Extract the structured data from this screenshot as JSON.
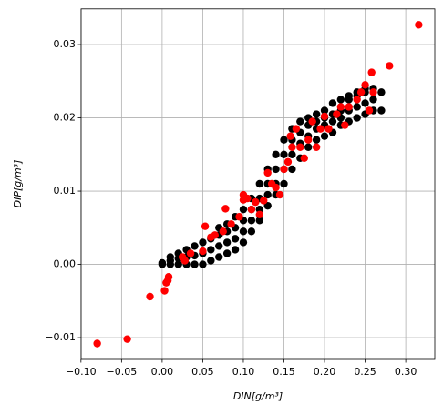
{
  "chart_data": {
    "type": "scatter",
    "xlabel": "DIN[g/m³]",
    "ylabel": "DIP[g/m³]",
    "xlim": [
      -0.0998,
      0.3358
    ],
    "ylim": [
      -0.012975,
      0.034875
    ],
    "xticks": [
      {
        "value": -0.1,
        "label": "−0.10"
      },
      {
        "value": -0.05,
        "label": "−0.05"
      },
      {
        "value": 0,
        "label": "0.00"
      },
      {
        "value": 0.05,
        "label": "0.05"
      },
      {
        "value": 0.1,
        "label": "0.10"
      },
      {
        "value": 0.15,
        "label": "0.15"
      },
      {
        "value": 0.2,
        "label": "0.20"
      },
      {
        "value": 0.25,
        "label": "0.25"
      },
      {
        "value": 0.3,
        "label": "0.30"
      }
    ],
    "yticks": [
      {
        "value": -0.01,
        "label": "−0.01"
      },
      {
        "value": 0,
        "label": "0.00"
      },
      {
        "value": 0.01,
        "label": "0.01"
      },
      {
        "value": 0.02,
        "label": "0.02"
      },
      {
        "value": 0.03,
        "label": "0.03"
      }
    ],
    "grid": true,
    "series": [
      {
        "color": "#000000",
        "x": [
          0,
          0,
          0.01,
          0.01,
          0.01,
          0.02,
          0.02,
          0.02,
          0.03,
          0.03,
          0.03,
          0.04,
          0.04,
          0.04,
          0.05,
          0.05,
          0.05,
          0.06,
          0.06,
          0.06,
          0.07,
          0.07,
          0.07,
          0.07,
          0.08,
          0.08,
          0.08,
          0.08,
          0.09,
          0.09,
          0.09,
          0.09,
          0.1,
          0.1,
          0.1,
          0.1,
          0.11,
          0.11,
          0.11,
          0.11,
          0.12,
          0.12,
          0.12,
          0.12,
          0.13,
          0.13,
          0.13,
          0.13,
          0.14,
          0.14,
          0.14,
          0.14,
          0.15,
          0.15,
          0.15,
          0.15,
          0.16,
          0.16,
          0.16,
          0.16,
          0.17,
          0.17,
          0.17,
          0.17,
          0.18,
          0.18,
          0.18,
          0.18,
          0.19,
          0.19,
          0.19,
          0.19,
          0.2,
          0.2,
          0.2,
          0.2,
          0.21,
          0.21,
          0.21,
          0.21,
          0.22,
          0.22,
          0.22,
          0.22,
          0.23,
          0.23,
          0.23,
          0.23,
          0.24,
          0.24,
          0.24,
          0.24,
          0.25,
          0.25,
          0.25,
          0.25,
          0.26,
          0.26,
          0.26,
          0.27,
          0.27
        ],
        "values": [
          0,
          0.0002,
          0,
          0.0005,
          0.001,
          0,
          0.0008,
          0.0015,
          0,
          0.001,
          0.002,
          0,
          0.0012,
          0.0025,
          0,
          0.0015,
          0.003,
          0.0005,
          0.002,
          0.0035,
          0.001,
          0.0025,
          0.004,
          0.005,
          0.0015,
          0.003,
          0.0045,
          0.0055,
          0.002,
          0.0035,
          0.005,
          0.0065,
          0.003,
          0.0045,
          0.006,
          0.0075,
          0.0045,
          0.006,
          0.0075,
          0.009,
          0.006,
          0.0075,
          0.009,
          0.011,
          0.008,
          0.0095,
          0.011,
          0.013,
          0.0095,
          0.011,
          0.013,
          0.015,
          0.011,
          0.013,
          0.015,
          0.017,
          0.013,
          0.015,
          0.017,
          0.0185,
          0.0145,
          0.0165,
          0.018,
          0.0195,
          0.016,
          0.0175,
          0.019,
          0.02,
          0.017,
          0.0185,
          0.0195,
          0.0205,
          0.0175,
          0.019,
          0.02,
          0.021,
          0.018,
          0.0195,
          0.0205,
          0.022,
          0.019,
          0.02,
          0.021,
          0.0225,
          0.0195,
          0.021,
          0.0225,
          0.023,
          0.02,
          0.0215,
          0.023,
          0.0235,
          0.0205,
          0.022,
          0.0235,
          0.024,
          0.021,
          0.0225,
          0.024,
          0.021,
          0.0235
        ]
      },
      {
        "color": "#ff0000",
        "x": [
          -0.08,
          -0.043,
          -0.015,
          0.003,
          0.005,
          0.007,
          0.008,
          0.025,
          0.028,
          0.035,
          0.05,
          0.053,
          0.06,
          0.065,
          0.075,
          0.078,
          0.085,
          0.095,
          0.1,
          0.105,
          0.1,
          0.11,
          0.115,
          0.12,
          0.125,
          0.13,
          0.135,
          0.14,
          0.145,
          0.15,
          0.155,
          0.16,
          0.158,
          0.165,
          0.17,
          0.175,
          0.18,
          0.185,
          0.19,
          0.195,
          0.2,
          0.205,
          0.215,
          0.22,
          0.225,
          0.23,
          0.24,
          0.245,
          0.25,
          0.255,
          0.258,
          0.26,
          0.28,
          0.316
        ],
        "values": [
          -0.0108,
          -0.0102,
          -0.0044,
          -0.0036,
          -0.0025,
          -0.0022,
          -0.0017,
          0.001,
          0.0005,
          0.0015,
          0.0018,
          0.0052,
          0.0037,
          0.004,
          0.0045,
          0.0076,
          0.0055,
          0.0065,
          0.0088,
          0.009,
          0.0095,
          0.0075,
          0.0085,
          0.0068,
          0.0087,
          0.0125,
          0.011,
          0.0105,
          0.0095,
          0.013,
          0.014,
          0.016,
          0.0175,
          0.0185,
          0.016,
          0.0145,
          0.017,
          0.0195,
          0.016,
          0.0185,
          0.0202,
          0.0185,
          0.0205,
          0.0215,
          0.019,
          0.0215,
          0.0225,
          0.0235,
          0.0245,
          0.021,
          0.0262,
          0.0235,
          0.0271,
          0.0327
        ]
      }
    ]
  }
}
